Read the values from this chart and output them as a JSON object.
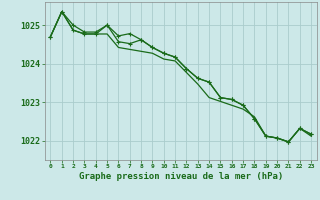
{
  "title": "Graphe pression niveau de la mer (hPa)",
  "background_color": "#cce8e8",
  "grid_color": "#aacccc",
  "line_color": "#1a6b1a",
  "x_ticks": [
    0,
    1,
    2,
    3,
    4,
    5,
    6,
    7,
    8,
    9,
    10,
    11,
    12,
    13,
    14,
    15,
    16,
    17,
    18,
    19,
    20,
    21,
    22,
    23
  ],
  "ylim": [
    1021.5,
    1025.6
  ],
  "yticks": [
    1022,
    1023,
    1024,
    1025
  ],
  "series_upper": [
    1024.7,
    1025.35,
    1025.0,
    1024.82,
    1024.82,
    1025.0,
    1024.72,
    1024.78,
    1024.62,
    1024.42,
    1024.27,
    1024.17,
    1023.87,
    1023.62,
    1023.52,
    1023.12,
    1023.07,
    1022.92,
    1022.57,
    1022.12,
    1022.07,
    1021.97,
    1022.32,
    1022.17
  ],
  "series_mid": [
    1024.7,
    1025.35,
    1024.87,
    1024.77,
    1024.77,
    1024.77,
    1024.42,
    1024.37,
    1024.32,
    1024.27,
    1024.12,
    1024.07,
    1023.77,
    1023.47,
    1023.12,
    1023.02,
    1022.92,
    1022.82,
    1022.62,
    1022.12,
    1022.07,
    1021.97,
    1022.32,
    1022.12
  ],
  "series_lower": [
    1024.7,
    1025.35,
    1024.87,
    1024.77,
    1024.77,
    1025.0,
    1024.57,
    1024.52,
    1024.62,
    1024.42,
    1024.27,
    1024.17,
    1023.87,
    1023.62,
    1023.52,
    1023.12,
    1023.07,
    1022.92,
    1022.57,
    1022.12,
    1022.07,
    1021.97,
    1022.32,
    1022.17
  ],
  "ylabel_fontsize": 6,
  "xlabel_fontsize": 6.5,
  "xtick_fontsize": 4.5,
  "ytick_fontsize": 6
}
